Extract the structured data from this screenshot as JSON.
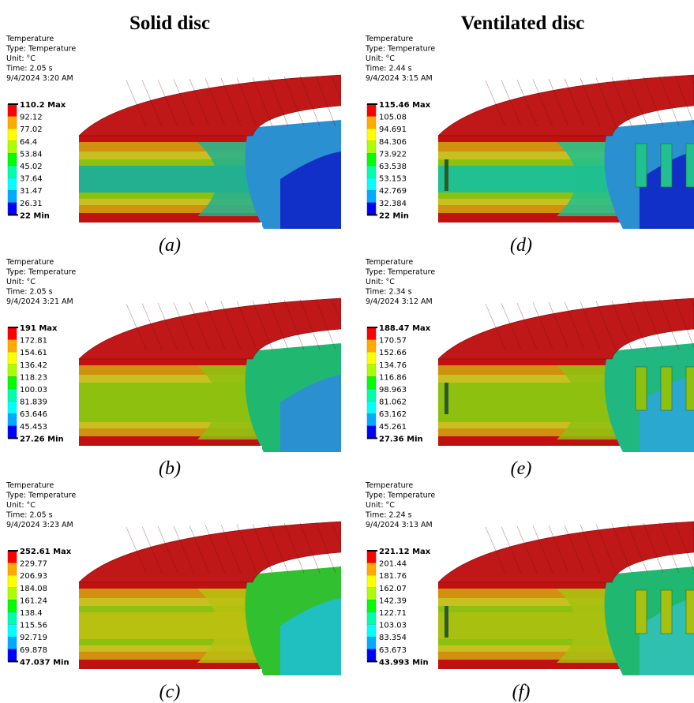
{
  "headers": [
    "Solid disc",
    "Ventilated disc"
  ],
  "panels": [
    {
      "label": "(a)",
      "info": [
        "Temperature",
        "Type: Temperature",
        "Unit: °C",
        "Time: 2.05 s",
        "9/4/2024 3:20 AM"
      ],
      "legend": [
        "110.2 Max",
        "92.12",
        "77.02",
        "64.4",
        "53.84",
        "45.02",
        "37.64",
        "31.47",
        "26.31",
        "22 Min"
      ]
    },
    {
      "label": "(b)",
      "info": [
        "Temperature",
        "Type: Temperature",
        "Unit: °C",
        "Time: 2.05 s",
        "9/4/2024 3:21 AM"
      ],
      "legend": [
        "191 Max",
        "172.81",
        "154.61",
        "136.42",
        "118.23",
        "100.03",
        "81.839",
        "63.646",
        "45.453",
        "27.26 Min"
      ]
    },
    {
      "label": "(c)",
      "info": [
        "Temperature",
        "Type: Temperature",
        "Unit: °C",
        "Time: 2.05 s",
        "9/4/2024 3:23 AM"
      ],
      "legend": [
        "252.61 Max",
        "229.77",
        "206.93",
        "184.08",
        "161.24",
        "138.4",
        "115.56",
        "92.719",
        "69.878",
        "47.037 Min"
      ]
    },
    {
      "label": "(d)",
      "info": [
        "Temperature",
        "Type: Temperature",
        "Unit: °C",
        "Time: 2.44 s",
        "9/4/2024 3:15 AM"
      ],
      "legend": [
        "115.46 Max",
        "105.08",
        "94.691",
        "84.306",
        "73.922",
        "63.538",
        "53.153",
        "42.769",
        "32.384",
        "22 Min"
      ]
    },
    {
      "label": "(e)",
      "info": [
        "Temperature",
        "Type: Temperature",
        "Unit: °C",
        "Time: 2.34 s",
        "9/4/2024 3:12 AM"
      ],
      "legend": [
        "188.47 Max",
        "170.57",
        "152.66",
        "134.76",
        "116.86",
        "98.963",
        "81.062",
        "63.162",
        "45.261",
        "27.36 Min"
      ]
    },
    {
      "label": "(f)",
      "info": [
        "Temperature",
        "Type: Temperature",
        "Unit: °C",
        "Time: 2.24 s",
        "9/4/2024 3:13 AM"
      ],
      "legend": [
        "221.12 Max",
        "201.44",
        "181.76",
        "162.07",
        "142.39",
        "122.71",
        "103.03",
        "83.354",
        "63.673",
        "43.993 Min"
      ]
    }
  ]
}
